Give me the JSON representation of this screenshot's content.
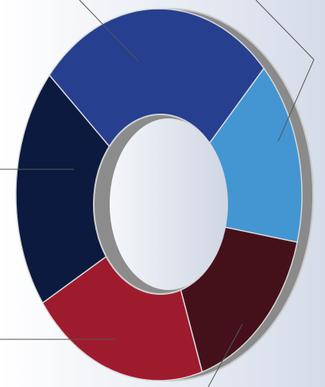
{
  "chart_data": {
    "type": "donut",
    "categories": [
      null,
      null,
      null,
      null,
      null
    ],
    "values": [
      27,
      16,
      16,
      20,
      21
    ],
    "colors": [
      "#263f8f",
      "#4396d2",
      "#44111a",
      "#9e1b2e",
      "#0b1a3e"
    ]
  }
}
